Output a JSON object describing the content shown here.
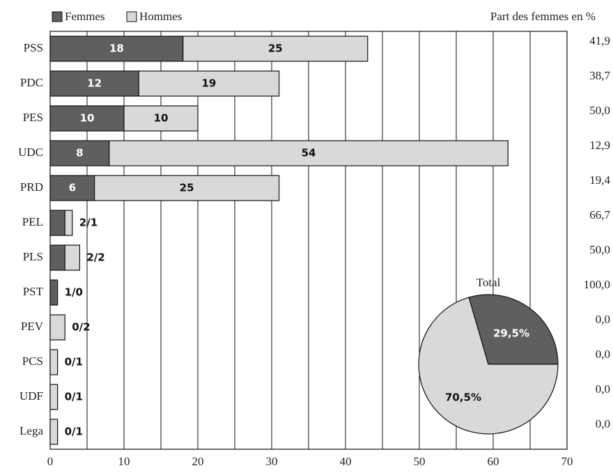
{
  "chart_data": {
    "type": "stacked-bar",
    "categories": [
      "PSS",
      "PDC",
      "PES",
      "UDC",
      "PRD",
      "PEL",
      "PLS",
      "PST",
      "PEV",
      "PCS",
      "UDF",
      "Lega"
    ],
    "series": [
      {
        "name": "Femmes",
        "color": "#5f5f5f",
        "values": [
          18,
          12,
          10,
          8,
          6,
          2,
          2,
          1,
          0,
          0,
          0,
          0
        ]
      },
      {
        "name": "Hommes",
        "color": "#d9d9d9",
        "values": [
          25,
          19,
          10,
          54,
          25,
          1,
          2,
          0,
          2,
          1,
          1,
          1
        ]
      }
    ],
    "pair_labels": [
      null,
      null,
      null,
      null,
      null,
      "2/1",
      "2/2",
      "1/0",
      "0/2",
      "0/1",
      "0/1",
      "0/1"
    ],
    "xlim": [
      0,
      70
    ],
    "xticks": [
      0,
      10,
      20,
      30,
      40,
      50,
      60,
      70
    ],
    "minor_xticks": [
      5,
      15,
      25,
      35,
      45,
      55,
      65
    ],
    "share": {
      "title": "Part des femmes en %",
      "values": [
        41.9,
        38.7,
        50.0,
        12.9,
        19.4,
        66.7,
        50.0,
        100.0,
        0.0,
        0.0,
        0.0,
        0.0
      ],
      "value_labels": [
        "41,9",
        "38,7",
        "50,0",
        "12,9",
        "19,4",
        "66,7",
        "50,0",
        "100,0",
        "0,0",
        "0,0",
        "0,0",
        "0,0"
      ]
    },
    "pie": {
      "type": "pie",
      "title": "Total",
      "values": [
        29.5,
        70.5
      ],
      "value_labels": [
        "29,5%",
        "70,5%"
      ],
      "colors": [
        "#5f5f5f",
        "#d9d9d9"
      ]
    }
  }
}
